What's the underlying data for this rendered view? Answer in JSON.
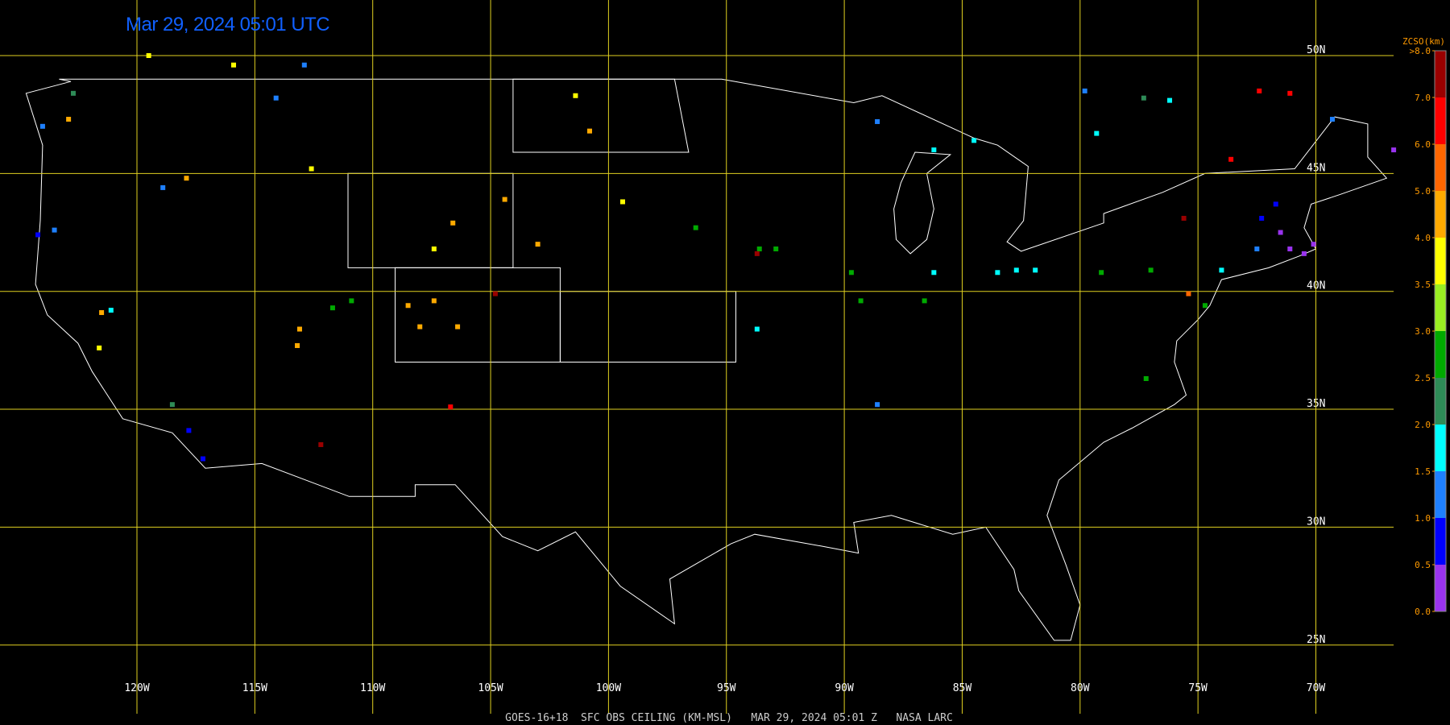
{
  "title": "Mar 29, 2024 05:01 UTC",
  "footer": "GOES-16+18  SFC OBS CEILING (KM-MSL)   MAR 29, 2024 05:01 Z   NASA LARC",
  "lat_lines": [
    {
      "value": 50,
      "label": "50N"
    },
    {
      "value": 45,
      "label": "45N"
    },
    {
      "value": 40,
      "label": "40N"
    },
    {
      "value": 35,
      "label": "35N"
    },
    {
      "value": 30,
      "label": "30N"
    },
    {
      "value": 25,
      "label": "25N"
    }
  ],
  "lon_lines": [
    {
      "value": -120,
      "label": "120W"
    },
    {
      "value": -115,
      "label": "115W"
    },
    {
      "value": -110,
      "label": "110W"
    },
    {
      "value": -105,
      "label": "105W"
    },
    {
      "value": -100,
      "label": "100W"
    },
    {
      "value": -95,
      "label": "95W"
    },
    {
      "value": -90,
      "label": "90W"
    },
    {
      "value": -85,
      "label": "85W"
    },
    {
      "value": -80,
      "label": "80W"
    },
    {
      "value": -75,
      "label": "75W"
    },
    {
      "value": -70,
      "label": "70W"
    }
  ],
  "colorbar": {
    "title": "ZCSO(km)",
    "ticks": [
      {
        "value": 0,
        "label": "0.0"
      },
      {
        "value": 0.5,
        "label": "0.5"
      },
      {
        "value": 1,
        "label": "1.0"
      },
      {
        "value": 1.5,
        "label": "1.5"
      },
      {
        "value": 2,
        "label": "2.0"
      },
      {
        "value": 2.5,
        "label": "2.5"
      },
      {
        "value": 3,
        "label": "3.0"
      },
      {
        "value": 3.5,
        "label": "3.5"
      },
      {
        "value": 4,
        "label": "4.0"
      },
      {
        "value": 5,
        "label": "5.0"
      },
      {
        "value": 6,
        "label": "6.0"
      },
      {
        "value": 7,
        "label": "7.0"
      },
      {
        "value": 8,
        "label": ">8.0"
      }
    ],
    "colors": [
      "#9933ee",
      "#0000ff",
      "#1e80ff",
      "#00ffff",
      "#2e8b57",
      "#00aa00",
      "#99ee22",
      "#ffff00",
      "#ffaa00",
      "#ff6600",
      "#ff0000",
      "#990000"
    ]
  },
  "stations": [
    {
      "lon": -107.4,
      "lat": 39.6,
      "ceiling": 4.5
    },
    {
      "lon": -106.4,
      "lat": 38.5,
      "ceiling": 4.5
    },
    {
      "lon": -108.5,
      "lat": 39.4,
      "ceiling": 4.5
    },
    {
      "lon": -108,
      "lat": 38.5,
      "ceiling": 4.5
    },
    {
      "lon": -71.1,
      "lat": 41.8,
      "ceiling": 0.3
    },
    {
      "lon": -70.5,
      "lat": 41.6,
      "ceiling": 0.3
    },
    {
      "lon": -71.5,
      "lat": 42.5,
      "ceiling": 0.3
    },
    {
      "lon": -70.1,
      "lat": 42,
      "ceiling": 0.3
    },
    {
      "lon": -71.7,
      "lat": 43.7,
      "ceiling": 0.7
    },
    {
      "lon": -72.3,
      "lat": 43.1,
      "ceiling": 0.7
    },
    {
      "lon": -72.5,
      "lat": 41.8,
      "ceiling": 1.2
    },
    {
      "lon": -74,
      "lat": 40.9,
      "ceiling": 1.7
    },
    {
      "lon": -83.5,
      "lat": 40.8,
      "ceiling": 1.7
    },
    {
      "lon": -82.7,
      "lat": 40.9,
      "ceiling": 1.7
    },
    {
      "lon": -81.9,
      "lat": 40.9,
      "ceiling": 1.7
    },
    {
      "lon": -86.6,
      "lat": 39.6,
      "ceiling": 2.7
    },
    {
      "lon": -86.2,
      "lat": 40.8,
      "ceiling": 1.7
    },
    {
      "lon": -89.7,
      "lat": 40.8,
      "ceiling": 2.7
    },
    {
      "lon": -89.3,
      "lat": 39.6,
      "ceiling": 2.7
    },
    {
      "lon": -93.6,
      "lat": 41.8,
      "ceiling": 2.7
    },
    {
      "lon": -92.9,
      "lat": 41.8,
      "ceiling": 2.7
    },
    {
      "lon": -93.7,
      "lat": 41.6,
      "ceiling": 7.5
    },
    {
      "lon": -93.7,
      "lat": 38.4,
      "ceiling": 1.7
    },
    {
      "lon": -88.6,
      "lat": 35.2,
      "ceiling": 1.2
    },
    {
      "lon": -104.4,
      "lat": 43.9,
      "ceiling": 4.5
    },
    {
      "lon": -106.6,
      "lat": 42.9,
      "ceiling": 4.5
    },
    {
      "lon": -107.4,
      "lat": 41.8,
      "ceiling": 3.7
    },
    {
      "lon": -110.9,
      "lat": 39.6,
      "ceiling": 2.7
    },
    {
      "lon": -111.7,
      "lat": 39.3,
      "ceiling": 2.7
    },
    {
      "lon": -113.1,
      "lat": 38.4,
      "ceiling": 4.5
    },
    {
      "lon": -113.2,
      "lat": 37.7,
      "ceiling": 4.5
    },
    {
      "lon": -121.1,
      "lat": 39.2,
      "ceiling": 1.7
    },
    {
      "lon": -121.5,
      "lat": 39.1,
      "ceiling": 4.5
    },
    {
      "lon": -121.6,
      "lat": 37.6,
      "ceiling": 3.7
    },
    {
      "lon": -117.2,
      "lat": 32.9,
      "ceiling": 0.7
    },
    {
      "lon": -117.8,
      "lat": 34.1,
      "ceiling": 0.7
    },
    {
      "lon": -118.5,
      "lat": 35.2,
      "ceiling": 2.2
    },
    {
      "lon": -112.2,
      "lat": 33.5,
      "ceiling": 7.5
    },
    {
      "lon": -106.7,
      "lat": 35.1,
      "ceiling": 6.5
    },
    {
      "lon": -122.7,
      "lat": 48.4,
      "ceiling": 2.2
    },
    {
      "lon": -122.9,
      "lat": 47.3,
      "ceiling": 4.5
    },
    {
      "lon": -124,
      "lat": 47,
      "ceiling": 1.2
    },
    {
      "lon": -123.5,
      "lat": 42.6,
      "ceiling": 1.2
    },
    {
      "lon": -124.2,
      "lat": 42.4,
      "ceiling": 0.7
    },
    {
      "lon": -118.9,
      "lat": 44.4,
      "ceiling": 1.2
    },
    {
      "lon": -117.9,
      "lat": 44.8,
      "ceiling": 4.5
    },
    {
      "lon": -114.1,
      "lat": 48.2,
      "ceiling": 1.2
    },
    {
      "lon": -112.6,
      "lat": 45.2,
      "ceiling": 3.7
    },
    {
      "lon": -101.4,
      "lat": 48.3,
      "ceiling": 3.7
    },
    {
      "lon": -100.8,
      "lat": 46.8,
      "ceiling": 4.5
    },
    {
      "lon": -99.4,
      "lat": 43.8,
      "ceiling": 3.7
    },
    {
      "lon": -96.3,
      "lat": 42.7,
      "ceiling": 2.7
    },
    {
      "lon": -84.5,
      "lat": 46.4,
      "ceiling": 1.7
    },
    {
      "lon": -86.2,
      "lat": 46,
      "ceiling": 1.7
    },
    {
      "lon": -88.6,
      "lat": 47.2,
      "ceiling": 1.2
    },
    {
      "lon": -79.1,
      "lat": 40.8,
      "ceiling": 2.7
    },
    {
      "lon": -77,
      "lat": 40.9,
      "ceiling": 2.7
    },
    {
      "lon": -77.2,
      "lat": 36.3,
      "ceiling": 2.7
    },
    {
      "lon": -72.4,
      "lat": 48.5,
      "ceiling": 6.5
    },
    {
      "lon": -71.1,
      "lat": 48.4,
      "ceiling": 6.5
    },
    {
      "lon": -69.3,
      "lat": 47.3,
      "ceiling": 1.2
    },
    {
      "lon": -66.7,
      "lat": 46,
      "ceiling": 0.3
    },
    {
      "lon": -73.6,
      "lat": 45.6,
      "ceiling": 6.5
    },
    {
      "lon": -76.2,
      "lat": 48.1,
      "ceiling": 1.7
    },
    {
      "lon": -77.3,
      "lat": 48.2,
      "ceiling": 2.2
    },
    {
      "lon": -79.8,
      "lat": 48.5,
      "ceiling": 1.2
    },
    {
      "lon": -75.6,
      "lat": 43.1,
      "ceiling": 7.5
    },
    {
      "lon": -79.3,
      "lat": 46.7,
      "ceiling": 1.7
    },
    {
      "lon": -119.5,
      "lat": 50,
      "ceiling": 3.7
    },
    {
      "lon": -115.9,
      "lat": 49.6,
      "ceiling": 3.7
    },
    {
      "lon": -112.9,
      "lat": 49.6,
      "ceiling": 1.2
    },
    {
      "lon": -103,
      "lat": 42,
      "ceiling": 4.5
    },
    {
      "lon": -104.8,
      "lat": 39.9,
      "ceiling": 7.5
    },
    {
      "lon": -75.4,
      "lat": 39.9,
      "ceiling": 5.5
    },
    {
      "lon": -74.7,
      "lat": 39.4,
      "ceiling": 2.7
    }
  ]
}
